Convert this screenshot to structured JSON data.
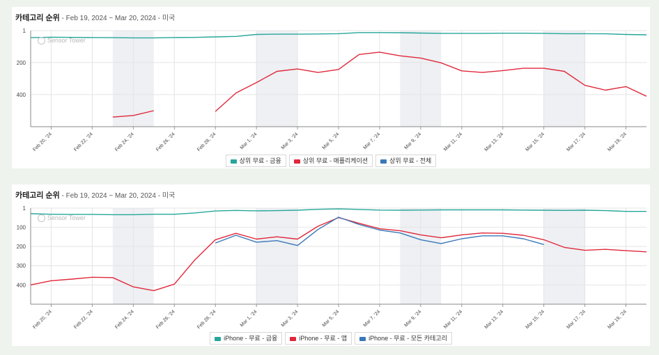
{
  "chart_data": [
    {
      "type": "line",
      "title": "카테고리 순위",
      "subtitle": " - Feb 19, 2024 ~ Mar 20, 2024 - 미국",
      "watermark": "Sensor Tower",
      "x": [
        "Feb 19, '24",
        "Feb 20, '24",
        "Feb 21, '24",
        "Feb 22, '24",
        "Feb 23, '24",
        "Feb 24, '24",
        "Feb 25, '24",
        "Feb 26, '24",
        "Feb 27, '24",
        "Feb 28, '24",
        "Feb 29, '24",
        "Mar 1, '24",
        "Mar 2, '24",
        "Mar 3, '24",
        "Mar 4, '24",
        "Mar 5, '24",
        "Mar 6, '24",
        "Mar 7, '24",
        "Mar 8, '24",
        "Mar 9, '24",
        "Mar 10, '24",
        "Mar 11, '24",
        "Mar 12, '24",
        "Mar 13, '24",
        "Mar 14, '24",
        "Mar 15, '24",
        "Mar 16, '24",
        "Mar 17, '24",
        "Mar 18, '24",
        "Mar 19, '24",
        "Mar 20, '24"
      ],
      "xtick_labels": [
        "Feb 20, '24",
        "Feb 22, '24",
        "Feb 24, '24",
        "Feb 26, '24",
        "Feb 28, '24",
        "Mar 1, '24",
        "Mar 3, '24",
        "Mar 5, '24",
        "Mar 7, '24",
        "Mar 9, '24",
        "Mar 11, '24",
        "Mar 13, '24",
        "Mar 15, '24",
        "Mar 17, '24",
        "Mar 19, '24"
      ],
      "y_ticks": [
        1,
        200,
        400
      ],
      "ylim": [
        1,
        600
      ],
      "y_inverted": true,
      "weekend_shading": [
        [
          "Feb 23, '24",
          "Feb 25, '24"
        ],
        [
          "Mar 1, '24",
          "Mar 3, '24"
        ],
        [
          "Mar 8, '24",
          "Mar 10, '24"
        ],
        [
          "Mar 15, '24",
          "Mar 17, '24"
        ]
      ],
      "series": [
        {
          "name": "상위 무료 - 금융",
          "color": "#26a69a",
          "values": [
            45,
            42,
            43,
            44,
            45,
            46,
            46,
            44,
            43,
            40,
            37,
            25,
            23,
            23,
            22,
            20,
            13,
            13,
            14,
            16,
            18,
            18,
            18,
            17,
            17,
            18,
            20,
            20,
            21,
            25,
            27
          ]
        },
        {
          "name": "상위 무료 - 애플리케이션",
          "color": "#e0283a",
          "values": [
            null,
            null,
            null,
            null,
            540,
            530,
            500,
            null,
            null,
            505,
            390,
            325,
            255,
            240,
            262,
            243,
            150,
            135,
            158,
            172,
            202,
            252,
            262,
            250,
            236,
            236,
            255,
            342,
            372,
            350,
            410
          ]
        },
        {
          "name": "상위 무료 - 전체",
          "color": "#3a78b8",
          "values": [
            null,
            null,
            null,
            null,
            null,
            null,
            null,
            null,
            null,
            null,
            null,
            null,
            null,
            null,
            null,
            null,
            null,
            null,
            null,
            null,
            null,
            null,
            null,
            null,
            null,
            null,
            null,
            null,
            null,
            null,
            null
          ]
        }
      ]
    },
    {
      "type": "line",
      "title": "카테고리 순위",
      "subtitle": " - Feb 19, 2024 ~ Mar 20, 2024 - 미국",
      "watermark": "Sensor Tower",
      "x": [
        "Feb 19, '24",
        "Feb 20, '24",
        "Feb 21, '24",
        "Feb 22, '24",
        "Feb 23, '24",
        "Feb 24, '24",
        "Feb 25, '24",
        "Feb 26, '24",
        "Feb 27, '24",
        "Feb 28, '24",
        "Feb 29, '24",
        "Mar 1, '24",
        "Mar 2, '24",
        "Mar 3, '24",
        "Mar 4, '24",
        "Mar 5, '24",
        "Mar 6, '24",
        "Mar 7, '24",
        "Mar 8, '24",
        "Mar 9, '24",
        "Mar 10, '24",
        "Mar 11, '24",
        "Mar 12, '24",
        "Mar 13, '24",
        "Mar 14, '24",
        "Mar 15, '24",
        "Mar 16, '24",
        "Mar 17, '24",
        "Mar 18, '24",
        "Mar 19, '24",
        "Mar 20, '24"
      ],
      "xtick_labels": [
        "Feb 20, '24",
        "Feb 22, '24",
        "Feb 24, '24",
        "Feb 26, '24",
        "Feb 28, '24",
        "Mar 1, '24",
        "Mar 3, '24",
        "Mar 5, '24",
        "Mar 7, '24",
        "Mar 9, '24",
        "Mar 11, '24",
        "Mar 13, '24",
        "Mar 15, '24",
        "Mar 17, '24",
        "Mar 19, '24"
      ],
      "y_ticks": [
        1,
        100,
        200,
        300,
        400
      ],
      "ylim": [
        1,
        500
      ],
      "y_inverted": true,
      "weekend_shading": [
        [
          "Feb 23, '24",
          "Feb 25, '24"
        ],
        [
          "Mar 1, '24",
          "Mar 3, '24"
        ],
        [
          "Mar 8, '24",
          "Mar 10, '24"
        ],
        [
          "Mar 15, '24",
          "Mar 17, '24"
        ]
      ],
      "series": [
        {
          "name": "iPhone - 무료 - 금융",
          "color": "#26a69a",
          "values": [
            30,
            33,
            34,
            34,
            35,
            35,
            33,
            33,
            26,
            16,
            13,
            15,
            14,
            12,
            7,
            5,
            8,
            11,
            12,
            11,
            10,
            10,
            10,
            10,
            11,
            12,
            13,
            12,
            14,
            18,
            18
          ]
        },
        {
          "name": "iPhone - 무료 - 앱",
          "color": "#e0283a",
          "values": [
            400,
            378,
            370,
            360,
            362,
            410,
            430,
            396,
            270,
            165,
            132,
            162,
            150,
            162,
            95,
            50,
            80,
            108,
            118,
            140,
            155,
            140,
            130,
            132,
            142,
            165,
            205,
            220,
            215,
            222,
            228
          ]
        },
        {
          "name": "iPhone - 무료 - 모든 카테고리",
          "color": "#3a78b8",
          "values": [
            null,
            null,
            null,
            null,
            null,
            null,
            null,
            null,
            null,
            182,
            142,
            178,
            170,
            195,
            112,
            48,
            86,
            115,
            130,
            165,
            185,
            160,
            145,
            145,
            160,
            190,
            null,
            null,
            null,
            null,
            null
          ]
        }
      ]
    }
  ]
}
